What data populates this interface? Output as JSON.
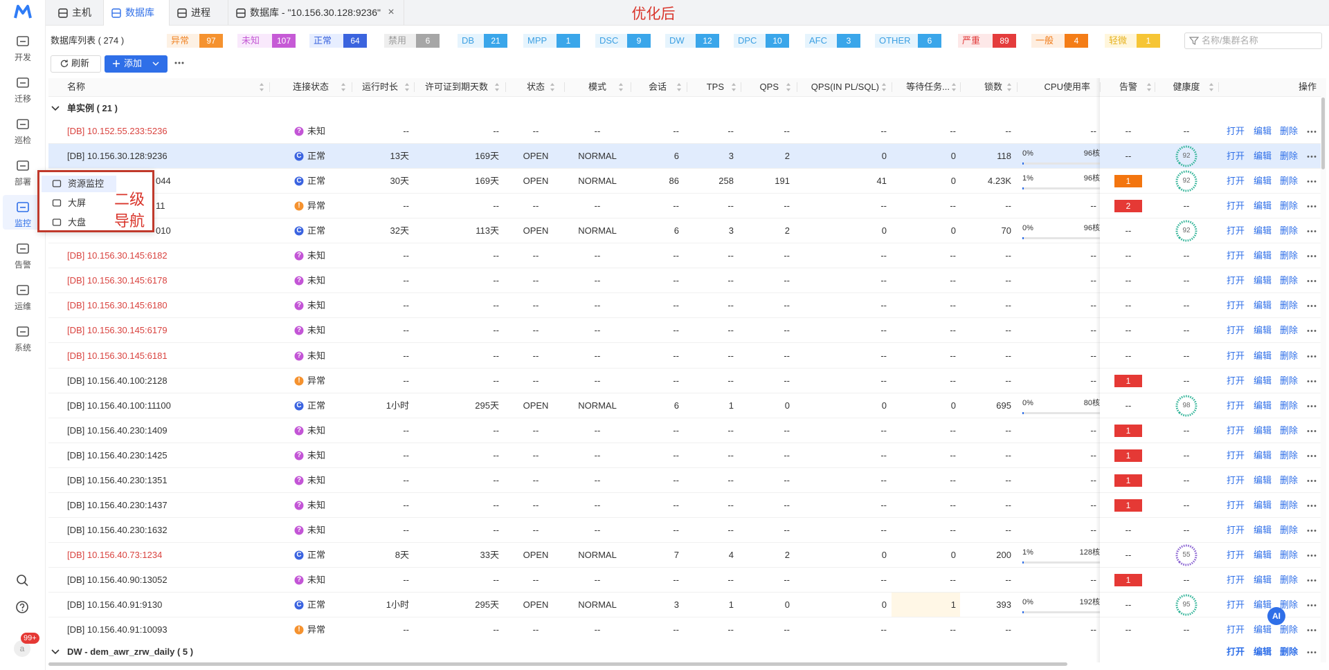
{
  "sidebar": {
    "items": [
      "开发",
      "迁移",
      "巡检",
      "部署",
      "监控",
      "告警",
      "运维",
      "系统"
    ],
    "active": 4,
    "badge": "99+",
    "avatar": "a"
  },
  "tabs": {
    "items": [
      "主机",
      "数据库",
      "进程",
      "数据库 - \"10.156.30.128:9236\""
    ],
    "active": 1,
    "close": "×"
  },
  "annotation": "优化后",
  "toolbar": {
    "title": "数据库列表 ( 274 )",
    "refresh": "刷新",
    "add": "添加",
    "search_placeholder": "名称/集群名称",
    "chips": [
      {
        "label": "异常",
        "count": "97",
        "text_color": "#f0882d",
        "bg": "#fdf1e4",
        "count_bg": "#f5922f"
      },
      {
        "label": "未知",
        "count": "107",
        "text_color": "#c358d3",
        "bg": "#f9e9fc",
        "count_bg": "#c65ad6"
      },
      {
        "label": "正常",
        "count": "64",
        "text_color": "#3b64de",
        "bg": "#e7eeff",
        "count_bg": "#3b64de"
      },
      {
        "label": "禁用",
        "count": "6",
        "text_color": "#9a9a9a",
        "bg": "#eeeeee",
        "count_bg": "#a6a6a6"
      },
      {
        "label": "DB",
        "count": "21",
        "text_color": "#3b9fe2",
        "bg": "#e6f4fd",
        "count_bg": "#3aa6ea"
      },
      {
        "label": "MPP",
        "count": "1",
        "text_color": "#3b9fe2",
        "bg": "#e6f4fd",
        "count_bg": "#3aa6ea"
      },
      {
        "label": "DSC",
        "count": "9",
        "text_color": "#3b9fe2",
        "bg": "#e6f4fd",
        "count_bg": "#3aa6ea"
      },
      {
        "label": "DW",
        "count": "12",
        "text_color": "#3b9fe2",
        "bg": "#e6f4fd",
        "count_bg": "#3aa6ea"
      },
      {
        "label": "DPC",
        "count": "10",
        "text_color": "#3b9fe2",
        "bg": "#e6f4fd",
        "count_bg": "#3aa6ea"
      },
      {
        "label": "AFC",
        "count": "3",
        "text_color": "#3b9fe2",
        "bg": "#e6f4fd",
        "count_bg": "#3aa6ea"
      },
      {
        "label": "OTHER",
        "count": "6",
        "text_color": "#3b9fe2",
        "bg": "#e6f4fd",
        "count_bg": "#3aa6ea"
      },
      {
        "label": "严重",
        "count": "89",
        "text_color": "#e13a3a",
        "bg": "#fde8e8",
        "count_bg": "#e43c3c"
      },
      {
        "label": "一般",
        "count": "4",
        "text_color": "#f07b18",
        "bg": "#feeee0",
        "count_bg": "#f47d17"
      },
      {
        "label": "轻微",
        "count": "1",
        "text_color": "#e6b21e",
        "bg": "#fff6dc",
        "count_bg": "#f6c535"
      }
    ]
  },
  "table": {
    "columns": [
      "名称",
      "连接状态",
      "运行时长",
      "许可证到期天数",
      "状态",
      "模式",
      "会话",
      "TPS",
      "QPS",
      "QPS(IN PL/SQL)",
      "等待任务...",
      "锁数",
      "CPU使用率",
      "告警",
      "健康度",
      "操作"
    ],
    "actions": [
      "打开",
      "编辑",
      "删除"
    ],
    "groups": [
      {
        "label": "单实例 ( 21 )",
        "rows": [
          {
            "name": "[DB] 10.152.55.233:5236",
            "name_color": "#d9433f",
            "conn": {
              "text": "未知",
              "icon": "?",
              "color": "#c355d6"
            },
            "cells": [
              "--",
              "--",
              "--",
              "--",
              "--",
              "--",
              "--",
              "--",
              "--",
              "--"
            ],
            "cpu": "--",
            "alert": "--",
            "health": "--"
          },
          {
            "name": "[DB] 10.156.30.128:9236",
            "selected": true,
            "conn": {
              "text": "正常",
              "icon": "C",
              "color": "#3a63e0"
            },
            "cells": [
              "13天",
              "169天",
              "OPEN",
              "NORMAL",
              "6",
              "3",
              "2",
              "0",
              "0",
              "118"
            ],
            "cpu": {
              "value": 0,
              "label": "0%",
              "cores": "96核"
            },
            "alert": "--",
            "health": {
              "score": "92",
              "color": "#35b59a"
            }
          },
          {
            "name": "044",
            "hidden_start": true,
            "conn": {
              "text": "正常",
              "icon": "C",
              "color": "#3a63e0"
            },
            "cells": [
              "30天",
              "169天",
              "OPEN",
              "NORMAL",
              "86",
              "258",
              "191",
              "41",
              "0",
              "4.23K"
            ],
            "cpu": {
              "value": 1,
              "label": "1%",
              "cores": "96核"
            },
            "alert": {
              "text": "1",
              "color": "#f3750f"
            },
            "health": {
              "score": "92",
              "color": "#35b59a"
            }
          },
          {
            "name": "11",
            "hidden_start": true,
            "conn": {
              "text": "异常",
              "icon": "!",
              "color": "#f5922f"
            },
            "cells": [
              "--",
              "--",
              "--",
              "--",
              "--",
              "--",
              "--",
              "--",
              "--",
              "--"
            ],
            "cpu": "--",
            "alert": {
              "text": "2",
              "color": "#e53935"
            },
            "health": "--"
          },
          {
            "name": "010",
            "hidden_start": true,
            "conn": {
              "text": "正常",
              "icon": "C",
              "color": "#3a63e0"
            },
            "cells": [
              "32天",
              "113天",
              "OPEN",
              "NORMAL",
              "6",
              "3",
              "2",
              "0",
              "0",
              "70"
            ],
            "cpu": {
              "value": 0,
              "label": "0%",
              "cores": "96核"
            },
            "alert": "--",
            "health": {
              "score": "92",
              "color": "#35b59a"
            }
          },
          {
            "name": "[DB] 10.156.30.145:6182",
            "name_color": "#d9433f",
            "conn": {
              "text": "未知",
              "icon": "?",
              "color": "#c355d6"
            },
            "cells": [
              "--",
              "--",
              "--",
              "--",
              "--",
              "--",
              "--",
              "--",
              "--",
              "--"
            ],
            "cpu": "--",
            "alert": "--",
            "health": "--"
          },
          {
            "name": "[DB] 10.156.30.145:6178",
            "name_color": "#d9433f",
            "conn": {
              "text": "未知",
              "icon": "?",
              "color": "#c355d6"
            },
            "cells": [
              "--",
              "--",
              "--",
              "--",
              "--",
              "--",
              "--",
              "--",
              "--",
              "--"
            ],
            "cpu": "--",
            "alert": "--",
            "health": "--"
          },
          {
            "name": "[DB] 10.156.30.145:6180",
            "name_color": "#d9433f",
            "conn": {
              "text": "未知",
              "icon": "?",
              "color": "#c355d6"
            },
            "cells": [
              "--",
              "--",
              "--",
              "--",
              "--",
              "--",
              "--",
              "--",
              "--",
              "--"
            ],
            "cpu": "--",
            "alert": "--",
            "health": "--"
          },
          {
            "name": "[DB] 10.156.30.145:6179",
            "name_color": "#d9433f",
            "conn": {
              "text": "未知",
              "icon": "?",
              "color": "#c355d6"
            },
            "cells": [
              "--",
              "--",
              "--",
              "--",
              "--",
              "--",
              "--",
              "--",
              "--",
              "--"
            ],
            "cpu": "--",
            "alert": "--",
            "health": "--"
          },
          {
            "name": "[DB] 10.156.30.145:6181",
            "name_color": "#d9433f",
            "conn": {
              "text": "未知",
              "icon": "?",
              "color": "#c355d6"
            },
            "cells": [
              "--",
              "--",
              "--",
              "--",
              "--",
              "--",
              "--",
              "--",
              "--",
              "--"
            ],
            "cpu": "--",
            "alert": "--",
            "health": "--"
          },
          {
            "name": "[DB] 10.156.40.100:2128",
            "conn": {
              "text": "异常",
              "icon": "!",
              "color": "#f5922f"
            },
            "cells": [
              "--",
              "--",
              "--",
              "--",
              "--",
              "--",
              "--",
              "--",
              "--",
              "--"
            ],
            "cpu": "--",
            "alert": {
              "text": "1",
              "color": "#e53935"
            },
            "health": "--"
          },
          {
            "name": "[DB] 10.156.40.100:11100",
            "conn": {
              "text": "正常",
              "icon": "C",
              "color": "#3a63e0"
            },
            "cells": [
              "1小时",
              "295天",
              "OPEN",
              "NORMAL",
              "6",
              "1",
              "0",
              "0",
              "0",
              "695"
            ],
            "cpu": {
              "value": 0,
              "label": "0%",
              "cores": "80核"
            },
            "alert": "--",
            "health": {
              "score": "98",
              "color": "#35b59a"
            }
          },
          {
            "name": "[DB] 10.156.40.230:1409",
            "conn": {
              "text": "未知",
              "icon": "?",
              "color": "#c355d6"
            },
            "cells": [
              "--",
              "--",
              "--",
              "--",
              "--",
              "--",
              "--",
              "--",
              "--",
              "--"
            ],
            "cpu": "--",
            "alert": {
              "text": "1",
              "color": "#e53935"
            },
            "health": "--"
          },
          {
            "name": "[DB] 10.156.40.230:1425",
            "conn": {
              "text": "未知",
              "icon": "?",
              "color": "#c355d6"
            },
            "cells": [
              "--",
              "--",
              "--",
              "--",
              "--",
              "--",
              "--",
              "--",
              "--",
              "--"
            ],
            "cpu": "--",
            "alert": {
              "text": "1",
              "color": "#e53935"
            },
            "health": "--"
          },
          {
            "name": "[DB] 10.156.40.230:1351",
            "conn": {
              "text": "未知",
              "icon": "?",
              "color": "#c355d6"
            },
            "cells": [
              "--",
              "--",
              "--",
              "--",
              "--",
              "--",
              "--",
              "--",
              "--",
              "--"
            ],
            "cpu": "--",
            "alert": {
              "text": "1",
              "color": "#e53935"
            },
            "health": "--"
          },
          {
            "name": "[DB] 10.156.40.230:1437",
            "conn": {
              "text": "未知",
              "icon": "?",
              "color": "#c355d6"
            },
            "cells": [
              "--",
              "--",
              "--",
              "--",
              "--",
              "--",
              "--",
              "--",
              "--",
              "--"
            ],
            "cpu": "--",
            "alert": {
              "text": "1",
              "color": "#e53935"
            },
            "health": "--"
          },
          {
            "name": "[DB] 10.156.40.230:1632",
            "conn": {
              "text": "未知",
              "icon": "?",
              "color": "#c355d6"
            },
            "cells": [
              "--",
              "--",
              "--",
              "--",
              "--",
              "--",
              "--",
              "--",
              "--",
              "--"
            ],
            "cpu": "--",
            "alert": "--",
            "health": "--"
          },
          {
            "name": "[DB] 10.156.40.73:1234",
            "name_color": "#d9433f",
            "conn": {
              "text": "正常",
              "icon": "C",
              "color": "#3a63e0"
            },
            "cells": [
              "8天",
              "33天",
              "OPEN",
              "NORMAL",
              "7",
              "4",
              "2",
              "0",
              "0",
              "200"
            ],
            "cpu": {
              "value": 1,
              "label": "1%",
              "cores": "128核"
            },
            "alert": "--",
            "health": {
              "score": "55",
              "color": "#8a63d2"
            }
          },
          {
            "name": "[DB] 10.156.40.90:13052",
            "conn": {
              "text": "未知",
              "icon": "?",
              "color": "#c355d6"
            },
            "cells": [
              "--",
              "--",
              "--",
              "--",
              "--",
              "--",
              "--",
              "--",
              "--",
              "--"
            ],
            "cpu": "--",
            "alert": {
              "text": "1",
              "color": "#e53935"
            },
            "health": "--"
          },
          {
            "name": "[DB] 10.156.40.91:9130",
            "highlight": 8,
            "conn": {
              "text": "正常",
              "icon": "C",
              "color": "#3a63e0"
            },
            "cells": [
              "1小时",
              "295天",
              "OPEN",
              "NORMAL",
              "3",
              "1",
              "0",
              "0",
              "1",
              "393"
            ],
            "cpu": {
              "value": 0,
              "label": "0%",
              "cores": "192核"
            },
            "alert": "--",
            "health": {
              "score": "95",
              "color": "#35b59a"
            }
          },
          {
            "name": "[DB] 10.156.40.91:10093",
            "conn": {
              "text": "异常",
              "icon": "!",
              "color": "#f5922f"
            },
            "cells": [
              "--",
              "--",
              "--",
              "--",
              "--",
              "--",
              "--",
              "--",
              "--",
              "--"
            ],
            "cpu": "--",
            "alert": "--",
            "health": "--"
          }
        ]
      },
      {
        "label": "DW - dem_awr_zrw_daily ( 5 )",
        "rows": []
      }
    ]
  },
  "popup": {
    "items": [
      "资源监控",
      "大屏",
      "大盘"
    ],
    "note": [
      "二级",
      "导航"
    ]
  },
  "ai_badge": "AI"
}
